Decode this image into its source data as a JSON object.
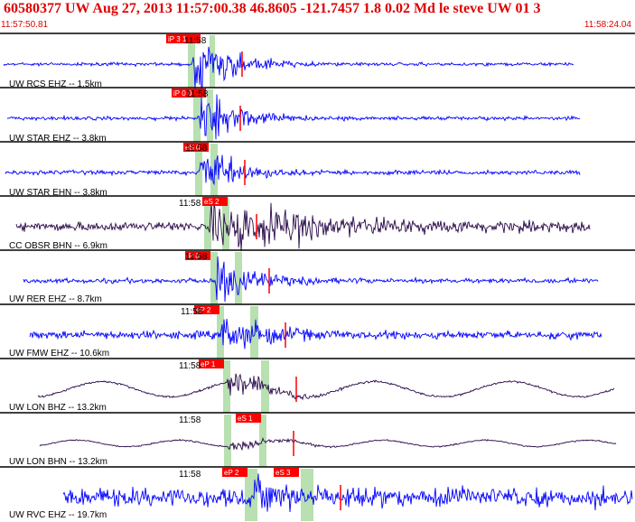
{
  "header": {
    "title": "60580377 UW Aug 27, 2013 11:57:00.38    46.8605 -121.7457  1.8 0.02 Md le steve UW 01    3",
    "start_time": "11:57:50.81",
    "end_time": "11:58:24.04"
  },
  "colors": {
    "header_text": "#e00000",
    "pick_box": "#ff0000",
    "highlight": "#b8e0b0",
    "trace_blue": "#0000ff",
    "trace_dark": "#2a0a4a"
  },
  "traces": [
    {
      "label": "UW RCS EHZ -- 1.5km",
      "time_label": "11:58",
      "color": "blue",
      "picks": [
        "iP 3 1"
      ]
    },
    {
      "label": "UW STAR EHZ -- 3.8km",
      "time_label": "11:58",
      "color": "blue",
      "picks": [
        "iP 0 0"
      ]
    },
    {
      "label": "UW STAR EHN -- 3.8km",
      "time_label": "11:58",
      "color": "blue",
      "picks": [
        "eS 0"
      ]
    },
    {
      "label": "CC OBSR BHN -- 6.9km",
      "time_label": "11:58",
      "color": "dark",
      "picks": [
        "eS 2"
      ]
    },
    {
      "label": "UW RER EHZ -- 8.7km",
      "time_label": "11:58",
      "color": "blue",
      "picks": [
        "iP 0"
      ]
    },
    {
      "label": "UW FMW EHZ -- 10.6km",
      "time_label": "11:58",
      "color": "blue",
      "picks": [
        "eP 2"
      ]
    },
    {
      "label": "UW LON BHZ -- 13.2km",
      "time_label": "11:58",
      "color": "dark",
      "picks": [
        "eP 1"
      ]
    },
    {
      "label": "UW LON BHN -- 13.2km",
      "time_label": "11:58",
      "color": "dark",
      "picks": [
        "eS 1"
      ]
    },
    {
      "label": "UW RVC EHZ -- 19.7km",
      "time_label": "11:58",
      "color": "blue",
      "picks": [
        "eP 2",
        "eS 3"
      ]
    }
  ]
}
